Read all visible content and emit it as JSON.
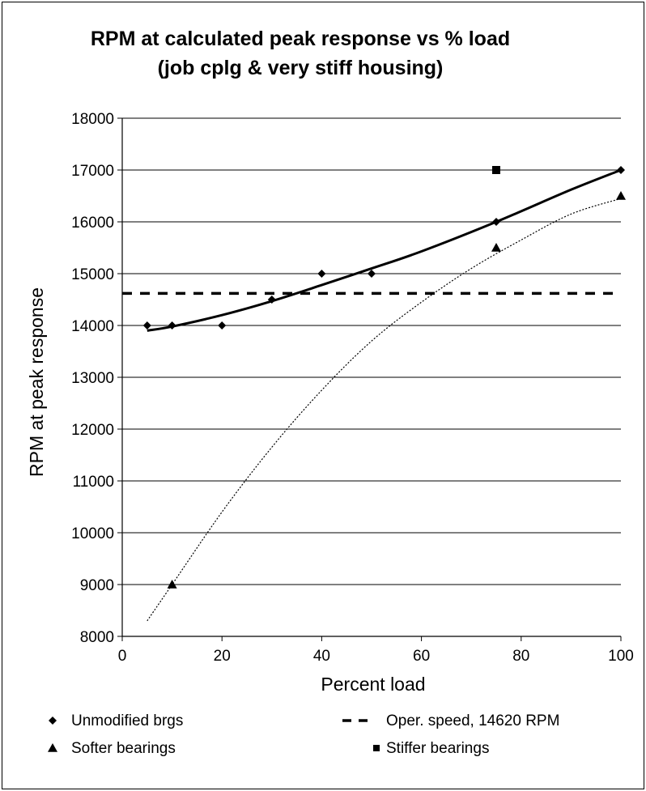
{
  "chart_data": {
    "type": "scatter",
    "title": [
      "RPM at calculated peak response vs % load",
      "(job cplg & very stiff housing)"
    ],
    "xlabel": "Percent load",
    "ylabel": "RPM at peak response",
    "xlim": [
      0,
      100
    ],
    "ylim": [
      8000,
      18000
    ],
    "xticks": [
      0,
      20,
      40,
      60,
      80,
      100
    ],
    "yticks": [
      8000,
      9000,
      10000,
      11000,
      12000,
      13000,
      14000,
      15000,
      16000,
      17000,
      18000
    ],
    "grid": "horizontal",
    "legend_position": "bottom",
    "series": [
      {
        "name": "Unmodified brgs",
        "marker": "diamond",
        "x": [
          5,
          10,
          20,
          30,
          40,
          50,
          75,
          100
        ],
        "y": [
          14000,
          14000,
          14000,
          14500,
          15000,
          15000,
          16000,
          17000
        ],
        "trendline": {
          "style": "solid-thick",
          "x": [
            5,
            10,
            20,
            30,
            40,
            50,
            60,
            75,
            90,
            100
          ],
          "y": [
            13900,
            13980,
            14200,
            14470,
            14780,
            15100,
            15430,
            16000,
            16620,
            17000
          ]
        }
      },
      {
        "name": "Softer bearings",
        "marker": "triangle",
        "x": [
          10,
          75,
          100
        ],
        "y": [
          9000,
          15500,
          16500
        ],
        "trendline": {
          "style": "dotted-thin",
          "x": [
            5,
            10,
            20,
            30,
            40,
            50,
            60,
            70,
            80,
            90,
            100
          ],
          "y": [
            8300,
            9000,
            10400,
            11650,
            12750,
            13700,
            14450,
            15100,
            15650,
            16150,
            16450
          ]
        }
      },
      {
        "name": "Stiffer bearings",
        "marker": "square",
        "x": [
          75
        ],
        "y": [
          17000
        ]
      },
      {
        "name": "Oper. speed, 14620 RPM",
        "marker": "dashed-line",
        "x": [
          0,
          100
        ],
        "y": [
          14620,
          14620
        ]
      }
    ]
  }
}
